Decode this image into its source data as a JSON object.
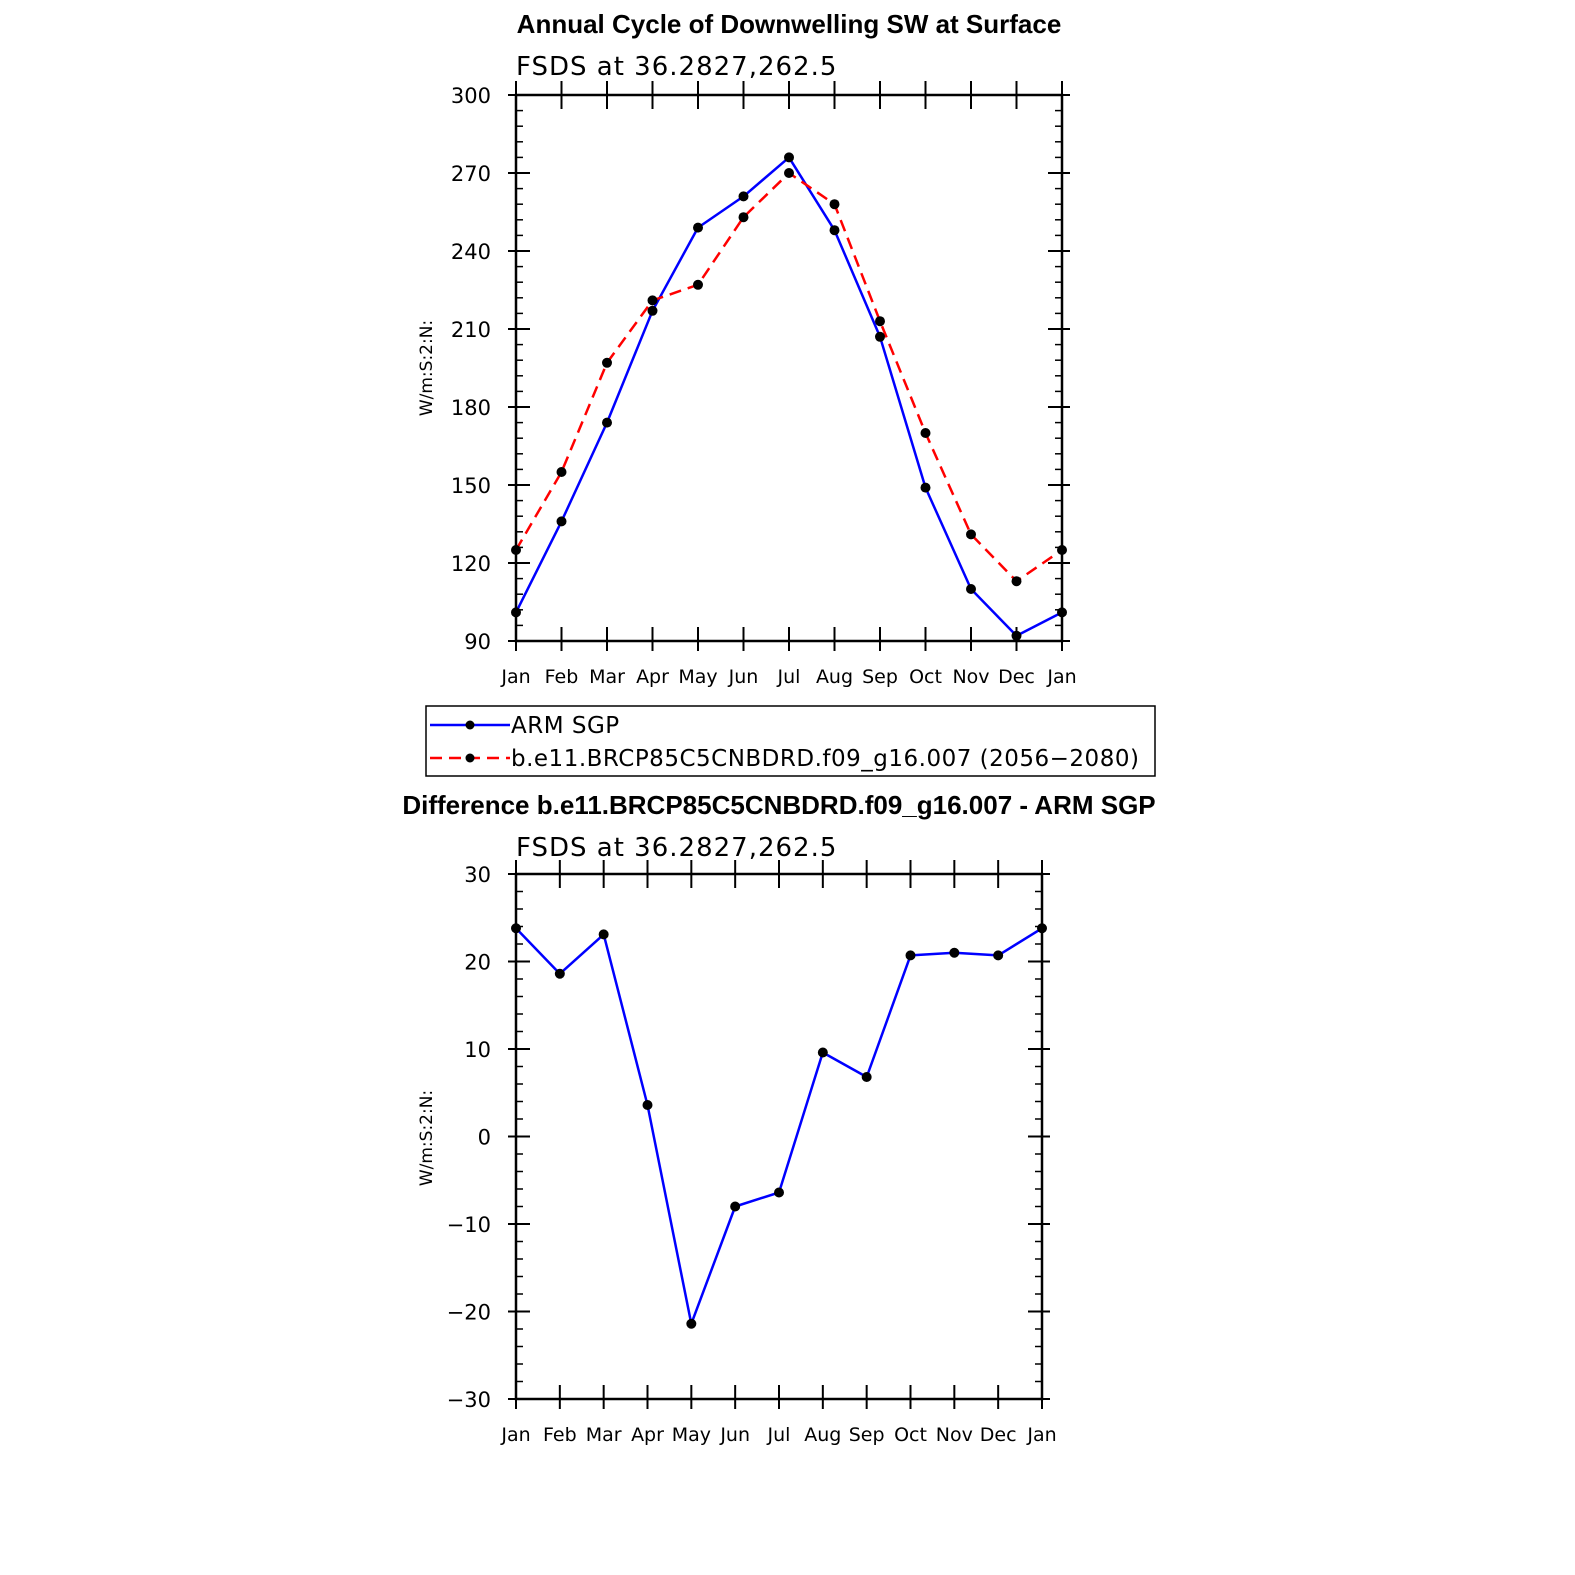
{
  "chart_data": [
    {
      "type": "line",
      "title": "Annual Cycle of Downwelling SW at Surface",
      "subtitle": "FSDS at 36.2827,262.5",
      "xlabel": "",
      "ylabel": "W/m:S:2:N:",
      "categories": [
        "Jan",
        "Feb",
        "Mar",
        "Apr",
        "May",
        "Jun",
        "Jul",
        "Aug",
        "Sep",
        "Oct",
        "Nov",
        "Dec",
        "Jan"
      ],
      "ylim": [
        90,
        300
      ],
      "yticks": [
        90,
        120,
        150,
        180,
        210,
        240,
        270,
        300
      ],
      "grid": false,
      "legend_position": "bottom",
      "series": [
        {
          "name": "ARM SGP",
          "color": "#0000ff",
          "dash": "solid",
          "values": [
            101,
            136,
            174,
            217,
            249,
            261,
            276,
            248,
            207,
            149,
            110,
            92,
            101
          ]
        },
        {
          "name": "b.e11.BRCP85C5CNBDRD.f09_g16.007 (2056−2080)",
          "color": "#ff0000",
          "dash": "dashed",
          "values": [
            125,
            155,
            197,
            221,
            227,
            253,
            270,
            258,
            213,
            170,
            131,
            113,
            125
          ]
        }
      ]
    },
    {
      "type": "line",
      "title": "Difference b.e11.BRCP85C5CNBDRD.f09_g16.007 - ARM SGP",
      "subtitle": "FSDS at 36.2827,262.5",
      "xlabel": "",
      "ylabel": "W/m:S:2:N:",
      "categories": [
        "Jan",
        "Feb",
        "Mar",
        "Apr",
        "May",
        "Jun",
        "Jul",
        "Aug",
        "Sep",
        "Oct",
        "Nov",
        "Dec",
        "Jan"
      ],
      "ylim": [
        -30,
        30
      ],
      "yticks": [
        -30,
        -20,
        -10,
        0,
        10,
        20,
        30
      ],
      "ytick_labels": [
        "−30",
        "−20",
        "−10",
        "0",
        "10",
        "20",
        "30"
      ],
      "grid": false,
      "series": [
        {
          "color": "#0000ff",
          "dash": "solid",
          "values": [
            23.8,
            18.6,
            23.1,
            3.6,
            -21.4,
            -8.0,
            -6.4,
            9.6,
            6.8,
            20.7,
            21.0,
            20.7,
            23.8
          ]
        }
      ]
    }
  ]
}
